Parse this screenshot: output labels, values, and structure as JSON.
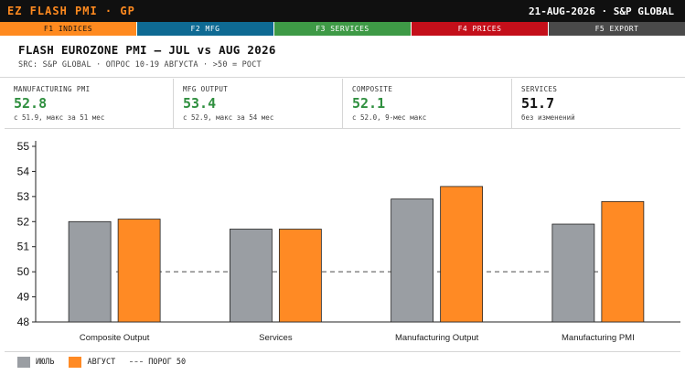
{
  "app": {
    "title": "EZ FLASH PMI · GP",
    "meta": "21-AUG-2026 · S&P GLOBAL"
  },
  "fkeys": [
    {
      "label": "F1 INDICES",
      "color": "#ff8a1f",
      "active": true
    },
    {
      "label": "F2 MFG",
      "color": "#0e6a93",
      "active": false
    },
    {
      "label": "F3 SERVICES",
      "color": "#3e9a46",
      "active": false
    },
    {
      "label": "F4 PRICES",
      "color": "#c40f1a",
      "active": false
    },
    {
      "label": "F5 EXPORT",
      "color": "#4a4a4a",
      "active": false
    }
  ],
  "header": {
    "title": "FLASH EUROZONE PMI — JUL vs AUG 2026",
    "subtitle": "SRC: S&P GLOBAL · ОПРОС 10-19 АВГУСТА · >50 = РОСТ"
  },
  "kpis": [
    {
      "label": "MANUFACTURING PMI",
      "value": "52.8",
      "note": "с 51.9, макс за 51 мес",
      "tone": "up"
    },
    {
      "label": "MFG OUTPUT",
      "value": "53.4",
      "note": "с 52.9, макс за 54 мес",
      "tone": "up"
    },
    {
      "label": "COMPOSITE",
      "value": "52.1",
      "note": "с 52.0, 9-мес макс",
      "tone": "up"
    },
    {
      "label": "SERVICES",
      "value": "51.7",
      "note": "без изменений",
      "tone": "neutral"
    }
  ],
  "colors": {
    "positive": "#2f8f3f",
    "neutral": "#111111",
    "july": "#9a9ea3",
    "august": "#ff8a24",
    "threshold": "#888888"
  },
  "chart_data": {
    "type": "bar",
    "categories": [
      "Composite Output",
      "Services",
      "Manufacturing Output",
      "Manufacturing PMI"
    ],
    "series": [
      {
        "name": "ИЮЛЬ",
        "values": [
          52.0,
          51.7,
          52.9,
          51.9
        ]
      },
      {
        "name": "АВГУСТ",
        "values": [
          52.1,
          51.7,
          53.4,
          52.8
        ]
      }
    ],
    "ylim": [
      48,
      55
    ],
    "yticks": [
      48,
      49,
      50,
      51,
      52,
      53,
      54,
      55
    ],
    "threshold": 50,
    "grid": false,
    "legend_position": "bottom-left"
  },
  "legend": {
    "july": "ИЮЛЬ",
    "august": "АВГУСТ",
    "threshold": "ПОРОГ 50"
  }
}
